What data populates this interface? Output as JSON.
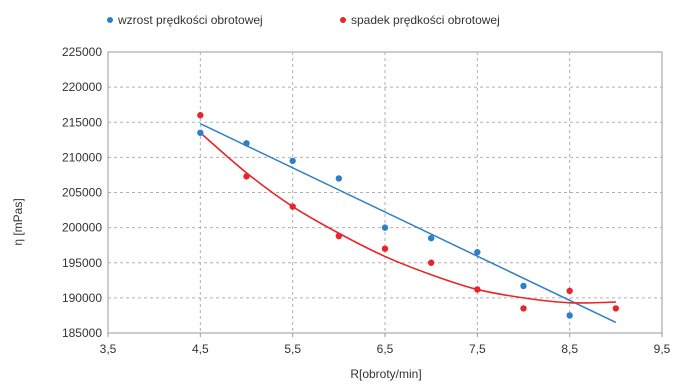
{
  "chart_data": {
    "type": "scatter",
    "title": "",
    "xlabel": "R[obroty/min]",
    "ylabel": "η [mPas]",
    "xlim": [
      3.5,
      9.5
    ],
    "ylim": [
      185000,
      225000
    ],
    "xticks": [
      3.5,
      4.5,
      5.5,
      6.5,
      7.5,
      8.5,
      9.5
    ],
    "xtick_labels": [
      "3,5",
      "4,5",
      "5,5",
      "6,5",
      "7,5",
      "8,5",
      "9,5"
    ],
    "yticks": [
      185000,
      190000,
      195000,
      200000,
      205000,
      210000,
      215000,
      220000,
      225000
    ],
    "ytick_labels": [
      "185000",
      "190000",
      "195000",
      "200000",
      "205000",
      "210000",
      "215000",
      "220000",
      "225000"
    ],
    "grid": {
      "x": true,
      "y": true,
      "style": "dashed"
    },
    "legend_position": "top",
    "series": [
      {
        "name": "wzrost prędkości obrotowej",
        "color": "#2f7fc8",
        "trendline": "linear",
        "trend_start": [
          4.5,
          214800
        ],
        "trend_end": [
          9.0,
          186500
        ],
        "points": [
          {
            "x": 4.5,
            "y": 213500
          },
          {
            "x": 5.0,
            "y": 212000
          },
          {
            "x": 5.5,
            "y": 209500
          },
          {
            "x": 6.0,
            "y": 207000
          },
          {
            "x": 6.5,
            "y": 200000
          },
          {
            "x": 7.0,
            "y": 198500
          },
          {
            "x": 7.5,
            "y": 196500
          },
          {
            "x": 8.0,
            "y": 191700
          },
          {
            "x": 8.5,
            "y": 187500
          }
        ]
      },
      {
        "name": "spadek prędkości obrotowej",
        "color": "#e8262a",
        "trendline": "polynomial",
        "trend_curve": [
          [
            4.5,
            213500
          ],
          [
            5.0,
            207800
          ],
          [
            5.5,
            203000
          ],
          [
            6.0,
            199200
          ],
          [
            6.5,
            195900
          ],
          [
            7.0,
            193300
          ],
          [
            7.5,
            191200
          ],
          [
            8.0,
            190000
          ],
          [
            8.5,
            189300
          ],
          [
            9.0,
            189400
          ]
        ],
        "points": [
          {
            "x": 4.5,
            "y": 216000
          },
          {
            "x": 5.0,
            "y": 207300
          },
          {
            "x": 5.5,
            "y": 203000
          },
          {
            "x": 6.0,
            "y": 198800
          },
          {
            "x": 6.5,
            "y": 197000
          },
          {
            "x": 7.0,
            "y": 195000
          },
          {
            "x": 7.5,
            "y": 191200
          },
          {
            "x": 8.0,
            "y": 188500
          },
          {
            "x": 8.5,
            "y": 191000
          },
          {
            "x": 9.0,
            "y": 188500
          }
        ]
      }
    ]
  }
}
